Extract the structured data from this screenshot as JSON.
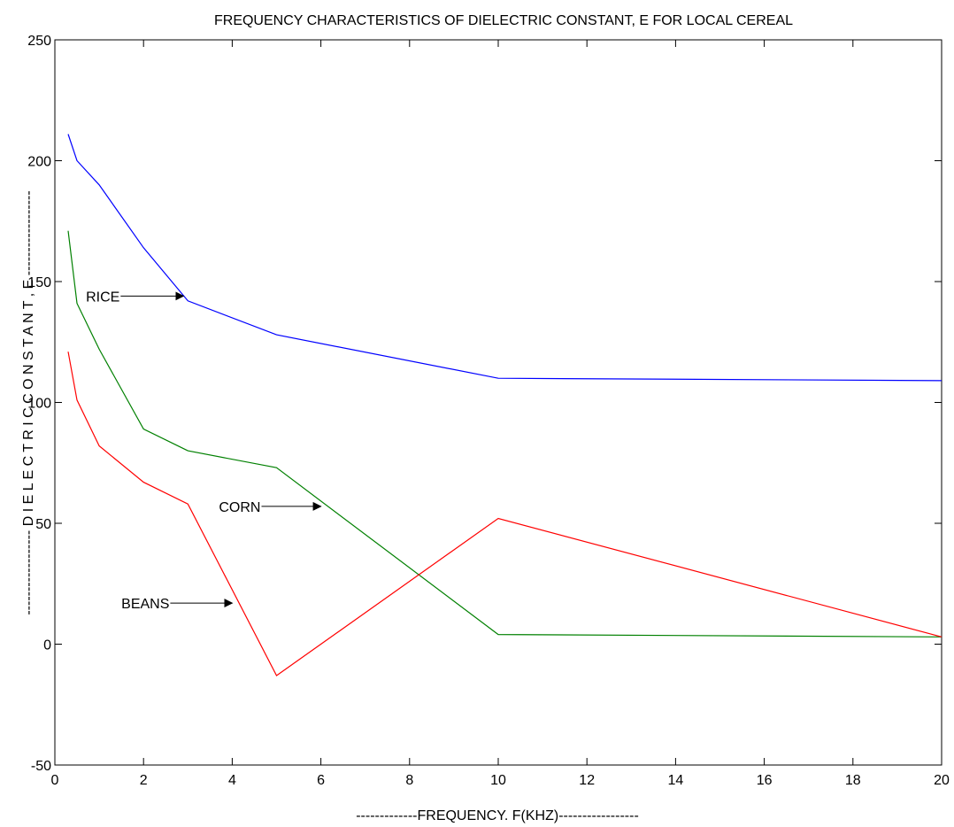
{
  "chart_data": {
    "type": "line",
    "title": "FREQUENCY CHARACTERISTICS OF DIELECTRIC CONSTANT, E FOR LOCAL CEREAL",
    "xlabel": "-------------FREQUENCY. F(KHZ)-----------------",
    "ylabel": "------------------ D I E L E C T R I C   C O N S T A N T   , E ------------------",
    "xlim": [
      0,
      20
    ],
    "ylim": [
      -50,
      250
    ],
    "xticks": [
      0,
      2,
      4,
      6,
      8,
      10,
      12,
      14,
      16,
      18,
      20
    ],
    "yticks": [
      -50,
      0,
      50,
      100,
      150,
      200,
      250
    ],
    "grid": false,
    "series": [
      {
        "name": "RICE",
        "color": "#0000ff",
        "x": [
          0.3,
          0.5,
          1,
          2,
          3,
          5,
          10,
          20
        ],
        "y": [
          211,
          200,
          190,
          164,
          142,
          128,
          110,
          109
        ]
      },
      {
        "name": "CORN",
        "color": "#008000",
        "x": [
          0.3,
          0.5,
          1,
          2,
          3,
          5,
          10,
          20
        ],
        "y": [
          171,
          141,
          122,
          89,
          80,
          73,
          4,
          3
        ]
      },
      {
        "name": "BEANS",
        "color": "#ff0000",
        "x": [
          0.3,
          0.5,
          1,
          2,
          3,
          5,
          10,
          20
        ],
        "y": [
          121,
          101,
          82,
          67,
          58,
          -13,
          52,
          3
        ]
      }
    ],
    "annotations": [
      {
        "text": "RICE",
        "label_at": [
          0.7,
          144
        ],
        "arrow_to": [
          2.9,
          144
        ]
      },
      {
        "text": "CORN",
        "label_at": [
          3.7,
          57
        ],
        "arrow_to": [
          6.0,
          57
        ]
      },
      {
        "text": "BEANS",
        "label_at": [
          1.5,
          17
        ],
        "arrow_to": [
          4.0,
          17
        ]
      }
    ]
  }
}
